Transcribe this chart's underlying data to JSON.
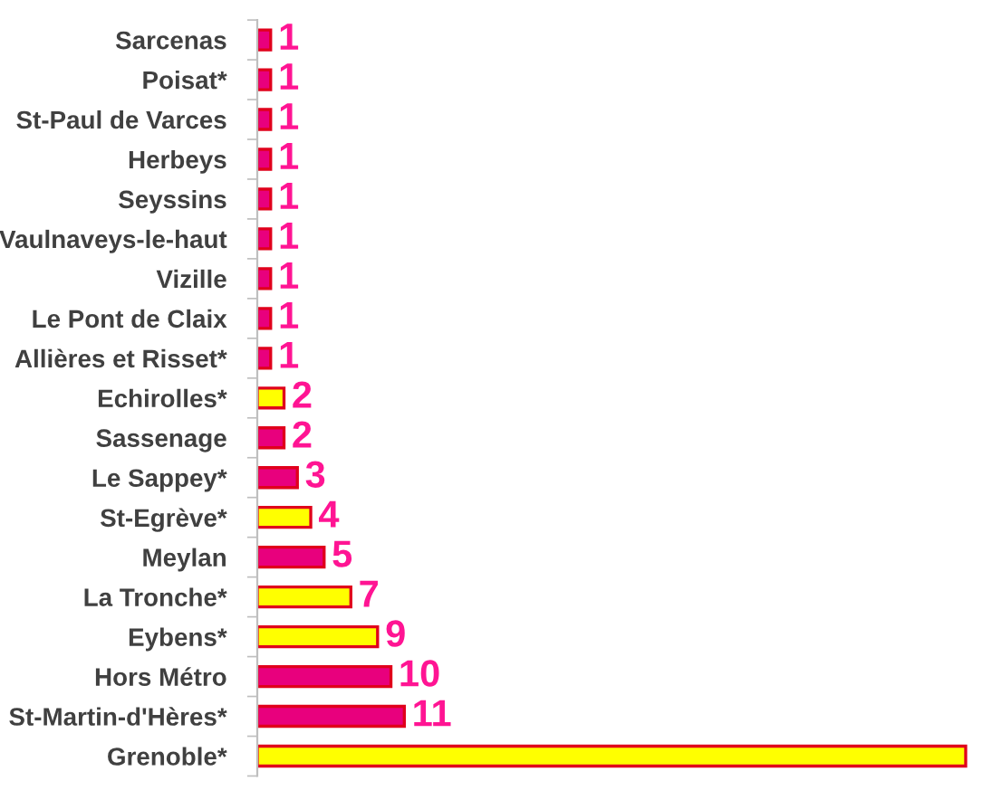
{
  "chart_data": {
    "type": "bar",
    "orientation": "horizontal",
    "tick_labels": "y",
    "categories": [
      "Sarcenas",
      "Poisat*",
      "St-Paul de Varces",
      "Herbeys",
      "Seyssins",
      "Vaulnaveys-le-haut",
      "Vizille",
      "Le Pont de Claix",
      "Allières et Risset*",
      "Echirolles*",
      "Sassenage",
      "Le Sappey*",
      "St-Egrève*",
      "Meylan",
      "La Tronche*",
      "Eybens*",
      "Hors Métro",
      "St-Martin-d'Hères*",
      "Grenoble*"
    ],
    "values": [
      1,
      1,
      1,
      1,
      1,
      1,
      1,
      1,
      1,
      2,
      2,
      3,
      4,
      5,
      7,
      9,
      10,
      11,
      53
    ],
    "value_labels": [
      "1",
      "1",
      "1",
      "1",
      "1",
      "1",
      "1",
      "1",
      "1",
      "2",
      "2",
      "3",
      "4",
      "5",
      "7",
      "9",
      "10",
      "11",
      null
    ],
    "colors": [
      "#e8007d",
      "#e8007d",
      "#e8007d",
      "#e8007d",
      "#e8007d",
      "#e8007d",
      "#e8007d",
      "#e8007d",
      "#e8007d",
      "#ffff00",
      "#e8007d",
      "#e8007d",
      "#ffff00",
      "#e8007d",
      "#ffff00",
      "#ffff00",
      "#e8007d",
      "#e8007d",
      "#ffff00"
    ],
    "grid": false,
    "legend": false
  }
}
